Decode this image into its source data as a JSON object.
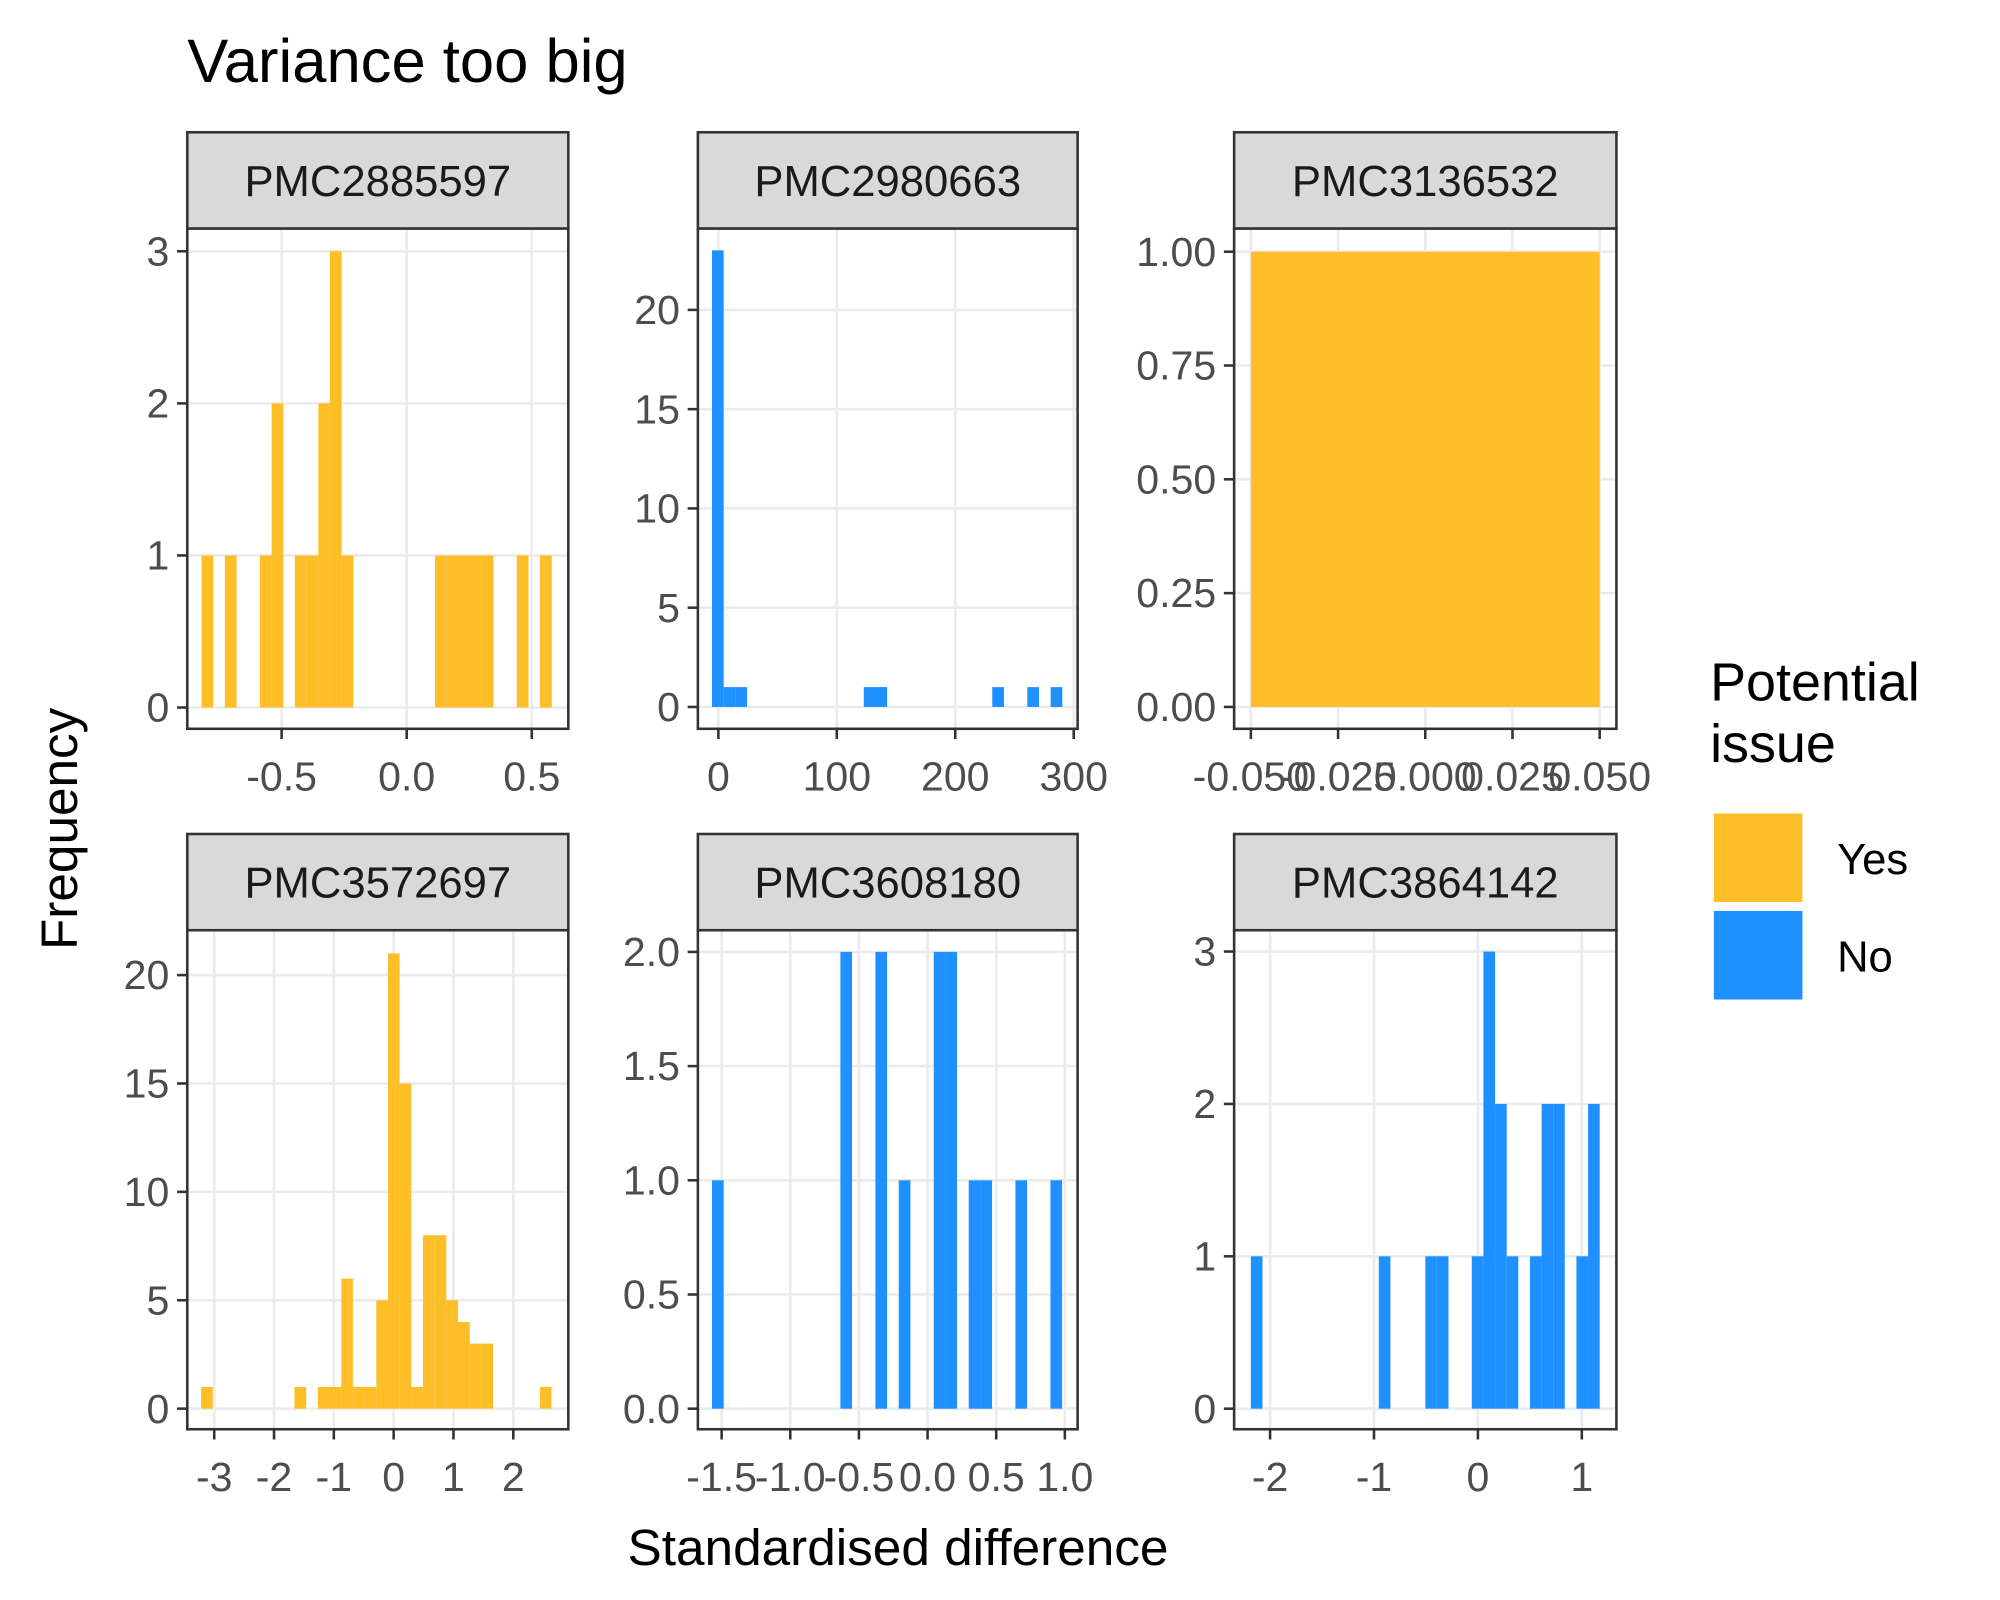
{
  "title": "Variance too big",
  "x_label": "Standardised difference",
  "y_label": "Frequency",
  "legend": {
    "title": "Potential issue",
    "items": [
      {
        "name": "Yes",
        "color": "#fdbe28"
      },
      {
        "name": "No",
        "color": "#1e90ff"
      }
    ]
  },
  "chart_data": [
    {
      "type": "histogram",
      "title": "PMC2885597",
      "color": "#fdbe28",
      "grid": true,
      "bins": [
        -0.82,
        -0.773,
        -0.727,
        -0.68,
        -0.633,
        -0.587,
        -0.54,
        -0.493,
        -0.447,
        -0.4,
        -0.353,
        -0.307,
        -0.26,
        -0.213,
        -0.167,
        -0.12,
        -0.073,
        -0.027,
        0.02,
        0.067,
        0.113,
        0.16,
        0.207,
        0.253,
        0.3,
        0.347,
        0.393,
        0.44,
        0.487,
        0.533,
        0.58
      ],
      "counts": [
        1,
        0,
        1,
        0,
        0,
        1,
        2,
        0,
        1,
        1,
        2,
        3,
        1,
        0,
        0,
        0,
        0,
        0,
        0,
        0,
        1,
        1,
        1,
        1,
        1,
        0,
        0,
        1,
        0,
        1
      ],
      "xlim": [
        -0.877,
        0.646
      ],
      "xticks": [
        -0.5,
        {
          "value": 0,
          "label": "0.0"
        },
        0.5
      ],
      "ylim": [
        -0.14,
        3.15
      ],
      "yticks": [
        0,
        1,
        2,
        3
      ]
    },
    {
      "type": "histogram",
      "title": "PMC2980663",
      "color": "#1e90ff",
      "grid": true,
      "bins": [
        -5.4,
        4.46,
        14.32,
        24.18,
        34.04,
        43.9,
        53.76,
        63.62,
        73.48,
        83.34,
        93.2,
        103.06,
        112.92,
        122.78,
        132.64,
        142.5,
        152.36,
        162.22,
        172.08,
        181.94,
        191.8,
        201.66,
        211.52,
        221.38,
        231.24,
        241.1,
        250.96,
        260.82,
        270.68,
        280.54,
        290.4
      ],
      "counts": [
        23,
        1,
        1,
        0,
        0,
        0,
        0,
        0,
        0,
        0,
        0,
        0,
        0,
        1,
        1,
        0,
        0,
        0,
        0,
        0,
        0,
        0,
        0,
        0,
        1,
        0,
        0,
        1,
        0,
        1
      ],
      "xlim": [
        -17.3,
        303.3
      ],
      "xticks": [
        0,
        100,
        200,
        300
      ],
      "ylim": [
        -1.1,
        24.1
      ],
      "yticks": [
        0,
        5,
        10,
        15,
        20
      ]
    },
    {
      "type": "histogram",
      "title": "PMC3136532",
      "color": "#fdbe28",
      "grid": true,
      "bins": [
        -0.05,
        0.05
      ],
      "counts": [
        1
      ],
      "xlim": [
        -0.0548,
        0.0548
      ],
      "xticks": [
        {
          "value": -0.05,
          "label": "-0.050"
        },
        {
          "value": -0.025,
          "label": "-0.025"
        },
        {
          "value": 0,
          "label": "0.000"
        },
        {
          "value": 0.025,
          "label": "0.025"
        },
        {
          "value": 0.05,
          "label": "0.050"
        }
      ],
      "ylim": [
        -0.048,
        1.051
      ],
      "yticks": [
        {
          "value": 0,
          "label": "0.00"
        },
        0.25,
        {
          "value": 0.5,
          "label": "0.50"
        },
        0.75,
        {
          "value": 1,
          "label": "1.00"
        }
      ]
    },
    {
      "type": "histogram",
      "title": "PMC3572697",
      "color": "#fdbe28",
      "grid": true,
      "bins": [
        -3.22,
        -3.025,
        -2.829,
        -2.634,
        -2.439,
        -2.243,
        -2.048,
        -1.853,
        -1.658,
        -1.462,
        -1.267,
        -1.072,
        -0.876,
        -0.681,
        -0.486,
        -0.29,
        -0.095,
        0.1,
        0.296,
        0.491,
        0.686,
        0.881,
        1.077,
        1.272,
        1.467,
        1.663,
        1.858,
        2.053,
        2.249,
        2.444,
        2.639
      ],
      "counts": [
        1,
        0,
        0,
        0,
        0,
        0,
        0,
        0,
        1,
        0,
        1,
        1,
        6,
        1,
        1,
        5,
        21,
        15,
        1,
        8,
        8,
        5,
        4,
        3,
        3,
        0,
        0,
        0,
        0,
        1
      ],
      "xlim": [
        -3.45,
        2.92
      ],
      "xticks": [
        -3,
        -2,
        -1,
        0,
        1,
        2
      ],
      "ylim": [
        -0.95,
        22.07
      ],
      "yticks": [
        0,
        5,
        10,
        15,
        20
      ]
    },
    {
      "type": "histogram",
      "title": "PMC3608180",
      "color": "#1e90ff",
      "grid": true,
      "bins": [
        -1.57,
        -1.485,
        -1.4,
        -1.315,
        -1.23,
        -1.145,
        -1.06,
        -0.975,
        -0.89,
        -0.805,
        -0.72,
        -0.635,
        -0.55,
        -0.465,
        -0.38,
        -0.295,
        -0.21,
        -0.125,
        -0.04,
        0.045,
        0.13,
        0.215,
        0.3,
        0.385,
        0.47,
        0.555,
        0.64,
        0.725,
        0.81,
        0.895,
        0.98
      ],
      "counts": [
        1,
        0,
        0,
        0,
        0,
        0,
        0,
        0,
        0,
        0,
        0,
        2,
        0,
        0,
        2,
        0,
        1,
        0,
        0,
        2,
        2,
        0,
        1,
        1,
        0,
        0,
        1,
        0,
        0,
        1
      ],
      "xlim": [
        -1.673,
        1.093
      ],
      "xticks": [
        -1.5,
        {
          "value": -1,
          "label": "-1.0"
        },
        -0.5,
        {
          "value": 0,
          "label": "0.0"
        },
        0.5,
        {
          "value": 1,
          "label": "1.0"
        }
      ],
      "ylim": [
        -0.09,
        2.095
      ],
      "yticks": [
        {
          "value": 0,
          "label": "0.0"
        },
        0.5,
        {
          "value": 1,
          "label": "1.0"
        },
        1.5,
        {
          "value": 2,
          "label": "2.0"
        }
      ]
    },
    {
      "type": "histogram",
      "title": "PMC3864142",
      "color": "#1e90ff",
      "grid": true,
      "bins": [
        -2.185,
        -2.073,
        -1.961,
        -1.849,
        -1.737,
        -1.625,
        -1.514,
        -1.402,
        -1.29,
        -1.178,
        -1.066,
        -0.954,
        -0.842,
        -0.73,
        -0.618,
        -0.506,
        -0.395,
        -0.283,
        -0.171,
        -0.059,
        0.053,
        0.165,
        0.277,
        0.389,
        0.501,
        0.613,
        0.724,
        0.836,
        0.948,
        1.06,
        1.172
      ],
      "counts": [
        1,
        0,
        0,
        0,
        0,
        0,
        0,
        0,
        0,
        0,
        0,
        1,
        0,
        0,
        0,
        1,
        1,
        0,
        0,
        1,
        3,
        2,
        1,
        0,
        1,
        2,
        2,
        0,
        1,
        2
      ],
      "xlim": [
        -2.346,
        1.333
      ],
      "xticks": [
        -2,
        -1,
        0,
        1
      ],
      "ylim": [
        -0.135,
        3.14
      ],
      "yticks": [
        0,
        1,
        2,
        3
      ]
    }
  ]
}
